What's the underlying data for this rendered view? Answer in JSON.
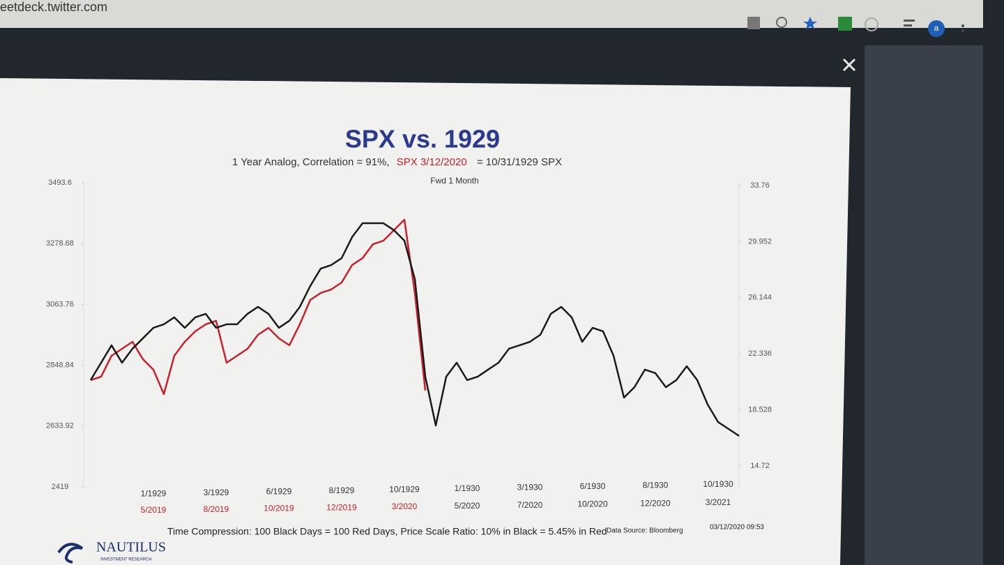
{
  "browser": {
    "url": "eetdeck.twitter.com",
    "avatar": "a"
  },
  "chart_data": {
    "type": "line",
    "title": "SPX vs. 1929",
    "subtitle": [
      "1 Year Analog, Correlation = 91%,",
      "SPX 3/12/2020",
      "= 10/31/1929 SPX"
    ],
    "annotation": "Fwd 1 Month",
    "footnote": "Time Compression: 100 Black Days = 100 Red Days,  Price Scale Ratio: 10% in Black = 5.45% in Red",
    "source": "Data Source: Bloomberg",
    "timestamp": "03/12/2020 09:53",
    "logo": "NAUTILUS",
    "logo_sub": "INVESTMENT RESEARCH",
    "categories": [
      null,
      null,
      null,
      null,
      null,
      null,
      "1/1929",
      null,
      null,
      null,
      null,
      null,
      "3/1929",
      null,
      null,
      null,
      null,
      null,
      "6/1929",
      null,
      null,
      null,
      null,
      null,
      "8/1929",
      null,
      null,
      null,
      null,
      null,
      "10/1929",
      null,
      null,
      null,
      null,
      null,
      "1/1930",
      null,
      null,
      null,
      null,
      null,
      "3/1930",
      null,
      null,
      null,
      null,
      null,
      "6/1930",
      null,
      null,
      null,
      null,
      null,
      "8/1930",
      null,
      null,
      null,
      null,
      null,
      "10/1930",
      null,
      null
    ],
    "categories2": [
      null,
      null,
      null,
      null,
      null,
      null,
      "5/2019",
      null,
      null,
      null,
      null,
      null,
      "8/2019",
      null,
      null,
      null,
      null,
      null,
      "10/2019",
      null,
      null,
      null,
      null,
      null,
      "12/2019",
      null,
      null,
      null,
      null,
      null,
      "3/2020",
      null,
      null,
      null,
      null,
      null,
      "5/2020",
      null,
      null,
      null,
      null,
      null,
      "7/2020",
      null,
      null,
      null,
      null,
      null,
      "10/2020",
      null,
      null,
      null,
      null,
      null,
      "12/2020",
      null,
      null,
      null,
      null,
      null,
      "3/2021",
      null,
      null
    ],
    "ylim": [
      2419,
      3493.6
    ],
    "yticks": [
      2419,
      2633.92,
      2848.84,
      3063.76,
      3278.68,
      3493.6
    ],
    "y2lim": [
      14.72,
      33.76
    ],
    "y2ticks": [
      14.72,
      18.528,
      22.336,
      26.144,
      29.952,
      33.76
    ],
    "series": [
      {
        "color": "#c8202a",
        "values": [
          2796.1,
          2808.4,
          2882.4,
          2907.0,
          2931.6,
          2870.0,
          2833.1,
          2746.8,
          2882.4,
          2931.6,
          2968.6,
          2993.3,
          3005.6,
          2857.7,
          2882.4,
          2907.0,
          2956.3,
          2980.9,
          2944.0,
          2919.3,
          2993.3,
          3079.5,
          3104.2,
          3116.5,
          3141.1,
          3202.8,
          3227.4,
          3276.7,
          3289.0,
          3326.0,
          3363.0,
          3104.2,
          2759.1,
          null,
          null,
          null,
          null,
          null,
          null,
          null,
          null,
          null,
          null,
          null,
          null,
          null,
          null,
          null,
          null,
          null,
          null,
          null,
          null,
          null,
          null,
          null,
          null,
          null,
          null,
          null,
          null,
          null,
          null
        ]
      },
      {
        "color": "#1a1a1a",
        "axis": "y2",
        "values": [
          20.55,
          21.73,
          22.91,
          21.73,
          22.68,
          23.39,
          24.1,
          24.34,
          24.81,
          24.1,
          24.81,
          25.05,
          24.1,
          24.34,
          24.34,
          25.05,
          25.52,
          25.05,
          24.1,
          24.58,
          25.52,
          26.94,
          28.12,
          28.36,
          28.83,
          30.26,
          31.2,
          31.2,
          31.2,
          30.73,
          30.02,
          27.41,
          20.78,
          17.47,
          20.78,
          21.73,
          20.55,
          20.78,
          21.26,
          21.73,
          22.68,
          22.91,
          23.15,
          23.63,
          25.05,
          25.52,
          24.81,
          23.15,
          24.1,
          23.86,
          22.2,
          19.36,
          20.07,
          21.26,
          21.02,
          20.07,
          20.55,
          21.49,
          20.55,
          18.89,
          17.7,
          17.23,
          16.76
        ]
      }
    ]
  }
}
